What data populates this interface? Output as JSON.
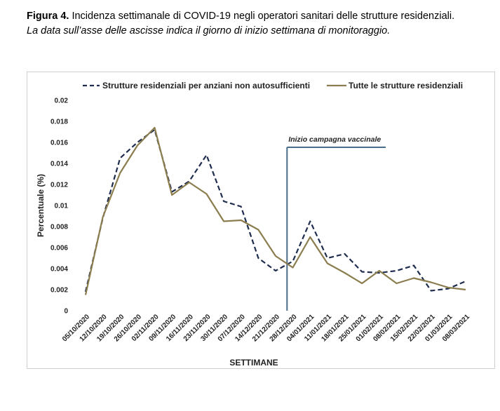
{
  "caption": {
    "label": "Figura 4.",
    "title": " Incidenza settimanale di COVID-19 negli operatori sanitari delle strutture residenziali.",
    "subtitle": "La data sull’asse delle ascisse indica il giorno di inizio settimana di monitoraggio."
  },
  "colors": {
    "series_dashed": "#1f2d4e",
    "series_solid": "#8b7d4e",
    "vline": "#4a6d8c"
  },
  "chart_data": {
    "type": "line",
    "xlabel": "SETTIMANE",
    "ylabel": "Percentuale (%)",
    "ylim": [
      0,
      0.02
    ],
    "yticks": [
      "0",
      "0.002",
      "0.004",
      "0.006",
      "0.008",
      "0.01",
      "0.012",
      "0.014",
      "0.016",
      "0.018",
      "0.02"
    ],
    "grid": false,
    "legend_position": "top",
    "categories": [
      "05/10/2020",
      "12/10/2020",
      "19/10/2020",
      "26/10/2020",
      "02/11/2020",
      "09/11/2020",
      "16/11/2020",
      "23/11/2020",
      "30/11/2020",
      "07/12/2020",
      "14/12/2020",
      "21/12/2020",
      "28/12/2020",
      "04/01/2021",
      "11/01/2021",
      "18/01/2021",
      "25/01/2021",
      "01/02/2021",
      "08/02/2021",
      "15/02/2021",
      "22/02/2021",
      "01/03/2021",
      "08/03/2021"
    ],
    "series": [
      {
        "name": "Strutture residenziali per anziani non autosufficienti",
        "style": "dashed",
        "values": [
          0.0018,
          0.0088,
          0.0145,
          0.016,
          0.0172,
          0.0113,
          0.0123,
          0.0148,
          0.0104,
          0.0099,
          0.005,
          0.0038,
          0.0047,
          0.0085,
          0.005,
          0.0054,
          0.0037,
          0.0036,
          0.0038,
          0.0043,
          0.0019,
          0.0021,
          0.0028
        ]
      },
      {
        "name": "Tutte le strutture residenziali",
        "style": "solid",
        "values": [
          0.0015,
          0.0089,
          0.0131,
          0.0157,
          0.0174,
          0.011,
          0.0122,
          0.0111,
          0.0085,
          0.0086,
          0.0077,
          0.0052,
          0.0041,
          0.007,
          0.0045,
          0.0036,
          0.0026,
          0.0038,
          0.0026,
          0.0031,
          0.0027,
          0.0022,
          0.002
        ]
      }
    ],
    "annotations": [
      {
        "text": "Inizio campagna vaccinale",
        "x_index": 12
      }
    ]
  }
}
